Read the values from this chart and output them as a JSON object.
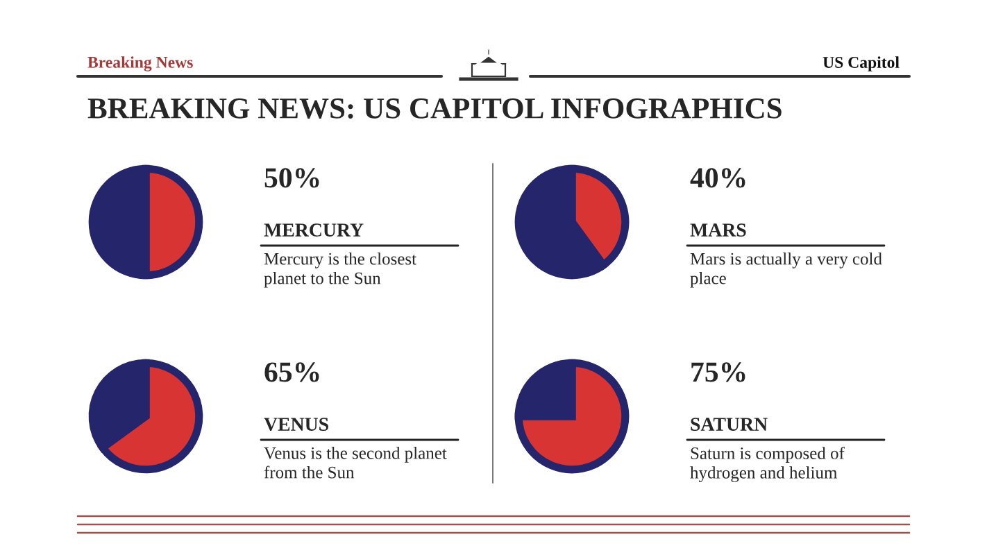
{
  "chart_data": [
    {
      "type": "other",
      "title": "BREAKING NEWS: US CAPITOL INFOGRAPHICS",
      "annotations": [
        "Breaking News",
        "US Capitol"
      ]
    },
    {
      "type": "pie",
      "title": "50%",
      "subtitle": "MERCURY",
      "annotations": [
        "Mercury is the closest planet to the Sun"
      ],
      "categories": [
        null,
        null
      ],
      "values": [
        50,
        50
      ],
      "colors": [
        "#d93434",
        "#25256b"
      ]
    },
    {
      "type": "pie",
      "title": "40%",
      "subtitle": "MARS",
      "annotations": [
        "Mars is actually a very cold place"
      ],
      "categories": [
        null,
        null
      ],
      "values": [
        40,
        60
      ],
      "colors": [
        "#d93434",
        "#25256b"
      ]
    },
    {
      "type": "pie",
      "title": "65%",
      "subtitle": "VENUS",
      "annotations": [
        "Venus is the second planet from the Sun"
      ],
      "categories": [
        null,
        null
      ],
      "values": [
        65,
        35
      ],
      "colors": [
        "#d93434",
        "#25256b"
      ]
    },
    {
      "type": "pie",
      "title": "75%",
      "subtitle": "SATURN",
      "annotations": [
        "Saturn is composed of hydrogen and helium"
      ],
      "categories": [
        null,
        null
      ],
      "values": [
        75,
        25
      ],
      "colors": [
        "#d93434",
        "#25256b"
      ]
    }
  ]
}
